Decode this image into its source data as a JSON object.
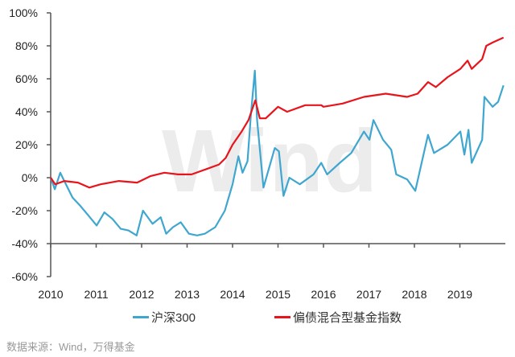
{
  "chart_data": {
    "type": "line",
    "title": "",
    "xlabel": "",
    "ylabel": "",
    "xlim": [
      2010,
      2020
    ],
    "ylim": [
      -60,
      100
    ],
    "x_axis_crosses_at": -40,
    "grid": false,
    "legend_position": "bottom",
    "x_ticks": [
      "2010",
      "2011",
      "2012",
      "2013",
      "2014",
      "2015",
      "2016",
      "2017",
      "2018",
      "2019"
    ],
    "y_ticks": [
      "100%",
      "80%",
      "60%",
      "40%",
      "20%",
      "0%",
      "-20%",
      "-40%",
      "-60%"
    ],
    "y_tick_values": [
      100,
      80,
      60,
      40,
      20,
      0,
      -20,
      -40,
      -60
    ],
    "watermark": "Wind",
    "series": [
      {
        "name": "沪深300",
        "color": "#3fa7cf",
        "x": [
          2010.0,
          2010.09,
          2010.21,
          2010.3,
          2010.48,
          2010.65,
          2010.83,
          2011.01,
          2011.18,
          2011.36,
          2011.54,
          2011.71,
          2011.89,
          2012.03,
          2012.24,
          2012.42,
          2012.54,
          2012.69,
          2012.86,
          2013.04,
          2013.22,
          2013.39,
          2013.62,
          2013.83,
          2014.0,
          2014.13,
          2014.22,
          2014.33,
          2014.4,
          2014.49,
          2014.54,
          2014.68,
          2014.93,
          2015.02,
          2015.12,
          2015.25,
          2015.48,
          2015.78,
          2015.95,
          2016.08,
          2016.36,
          2016.61,
          2016.89,
          2017.01,
          2017.1,
          2017.31,
          2017.49,
          2017.6,
          2017.84,
          2018.02,
          2018.2,
          2018.3,
          2018.43,
          2018.73,
          2019.01,
          2019.1,
          2019.19,
          2019.26,
          2019.49,
          2019.54,
          2019.72,
          2019.84,
          2019.96
        ],
        "y": [
          0,
          -7,
          3,
          -2,
          -12,
          -17,
          -23,
          -29,
          -21,
          -25,
          -31,
          -32,
          -35,
          -20,
          -28,
          -24,
          -34,
          -30,
          -27,
          -34,
          -35,
          -34,
          -30,
          -20,
          -4,
          13,
          3,
          10,
          37,
          65,
          35,
          -6,
          18,
          16,
          -11,
          0,
          -4,
          2,
          9,
          2,
          9,
          15,
          28,
          23,
          35,
          23,
          17,
          2,
          -1,
          -8,
          14,
          26,
          15,
          20,
          28,
          14,
          29,
          9,
          23,
          49,
          43,
          46,
          56
        ]
      },
      {
        "name": "偏债混合型基金指数",
        "color": "#e8141b",
        "x": [
          2010.0,
          2010.1,
          2010.3,
          2010.6,
          2010.85,
          2011.1,
          2011.5,
          2011.9,
          2012.2,
          2012.5,
          2012.8,
          2013.1,
          2013.4,
          2013.7,
          2013.85,
          2014.0,
          2014.2,
          2014.35,
          2014.5,
          2014.6,
          2014.73,
          2015.0,
          2015.2,
          2015.6,
          2015.95,
          2016.0,
          2016.42,
          2016.89,
          2017.37,
          2017.84,
          2018.07,
          2018.3,
          2018.47,
          2018.73,
          2019.01,
          2019.17,
          2019.26,
          2019.49,
          2019.58,
          2019.72,
          2019.96
        ],
        "y": [
          0,
          -4,
          -2,
          -3,
          -6,
          -4,
          -2,
          -3,
          1,
          3,
          2,
          2,
          5,
          8,
          12,
          20,
          28,
          35,
          47,
          36,
          36,
          43,
          40,
          44,
          44,
          43,
          45,
          49,
          51,
          49,
          51,
          58,
          55,
          61,
          66,
          71,
          66,
          72,
          80,
          82,
          85
        ]
      }
    ]
  },
  "source": "数据来源：Wind，万得基金"
}
